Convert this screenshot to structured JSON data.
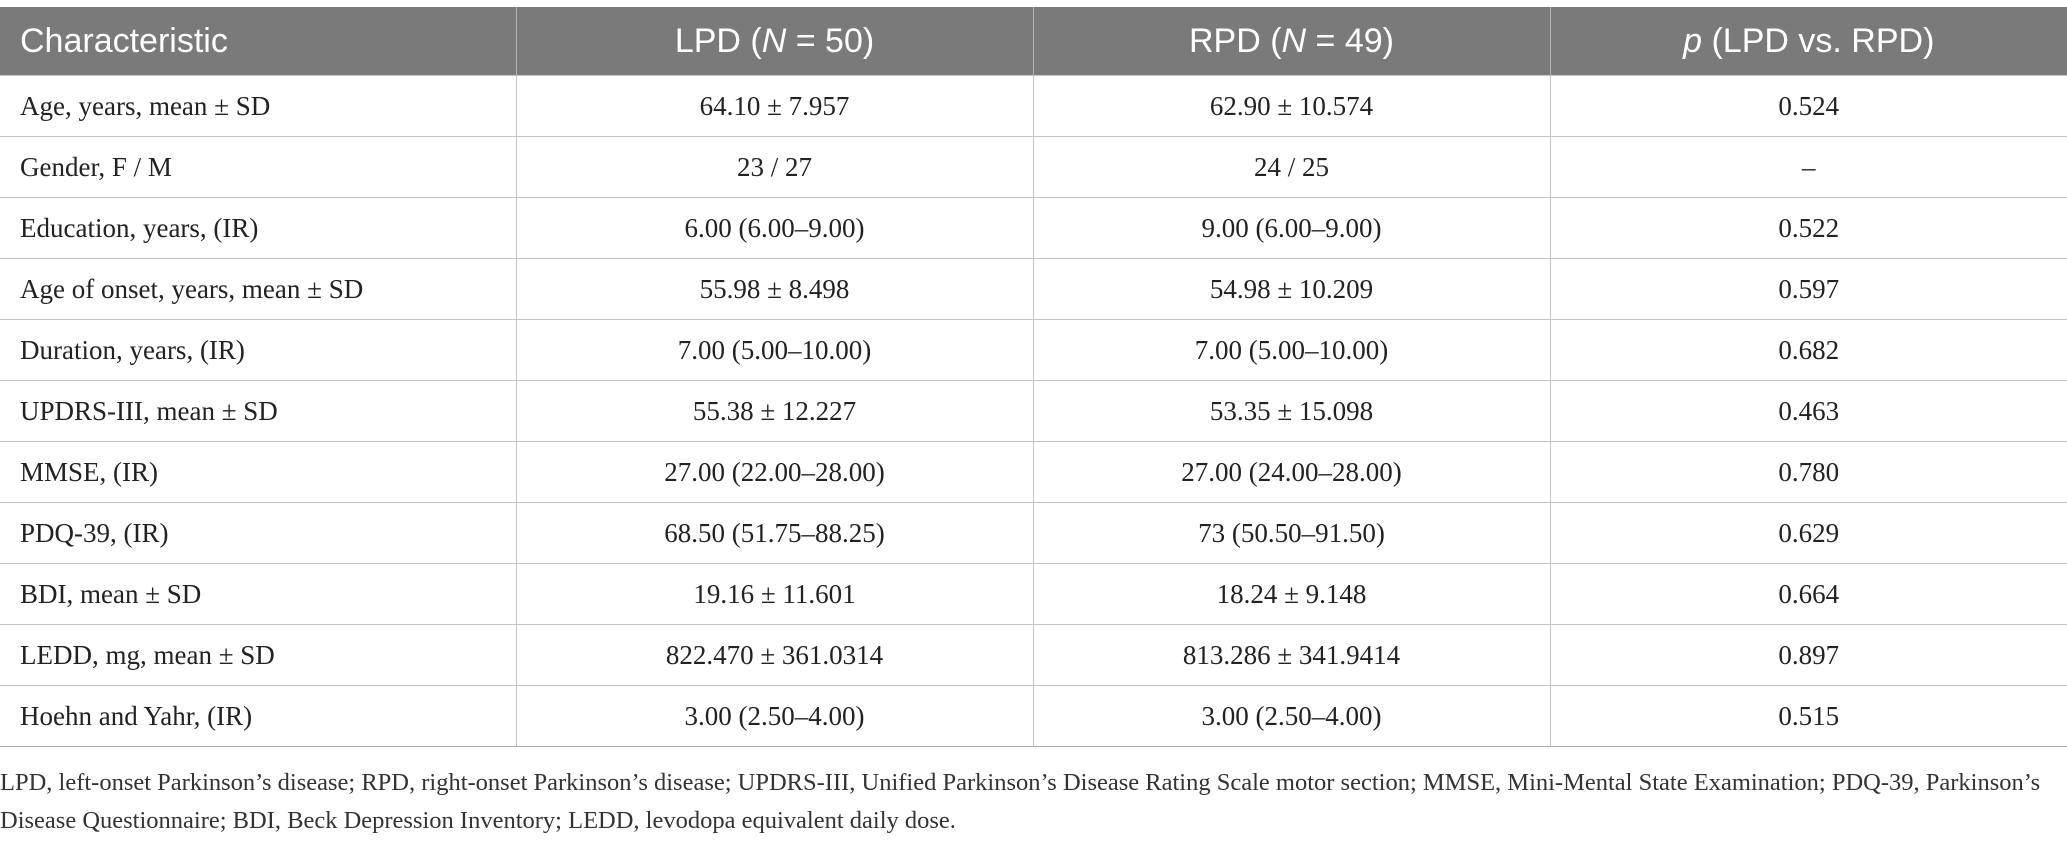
{
  "table": {
    "headers": [
      {
        "pre": "Characteristic",
        "ital": "",
        "post": ""
      },
      {
        "pre": "LPD (",
        "ital": "N",
        "post": " = 50)"
      },
      {
        "pre": "RPD (",
        "ital": "N",
        "post": " = 49)"
      },
      {
        "pre": "",
        "ital": "p",
        "post": " (LPD vs. RPD)"
      }
    ],
    "rows": [
      [
        "Age, years, mean ± SD",
        "64.10 ± 7.957",
        "62.90 ± 10.574",
        "0.524"
      ],
      [
        "Gender, F / M",
        "23 / 27",
        "24 / 25",
        "–"
      ],
      [
        "Education, years, (IR)",
        "6.00 (6.00–9.00)",
        "9.00 (6.00–9.00)",
        "0.522"
      ],
      [
        "Age of onset, years, mean ± SD",
        "55.98 ± 8.498",
        "54.98 ± 10.209",
        "0.597"
      ],
      [
        "Duration, years, (IR)",
        "7.00 (5.00–10.00)",
        "7.00 (5.00–10.00)",
        "0.682"
      ],
      [
        "UPDRS-III, mean ± SD",
        "55.38 ± 12.227",
        "53.35 ± 15.098",
        "0.463"
      ],
      [
        "MMSE, (IR)",
        "27.00 (22.00–28.00)",
        "27.00 (24.00–28.00)",
        "0.780"
      ],
      [
        "PDQ-39, (IR)",
        "68.50 (51.75–88.25)",
        "73 (50.50–91.50)",
        "0.629"
      ],
      [
        "BDI, mean ± SD",
        "19.16 ± 11.601",
        "18.24 ± 9.148",
        "0.664"
      ],
      [
        "LEDD, mg, mean ± SD",
        "822.470 ± 361.0314",
        "813.286 ± 341.9414",
        "0.897"
      ],
      [
        "Hoehn and Yahr, (IR)",
        "3.00 (2.50–4.00)",
        "3.00 (2.50–4.00)",
        "0.515"
      ]
    ]
  },
  "footnote": "LPD, left-onset Parkinson’s disease; RPD, right-onset Parkinson’s disease; UPDRS-III, Unified Parkinson’s Disease Rating Scale motor section; MMSE, Mini-Mental State Examination; PDQ-39, Parkinson’s Disease Questionnaire; BDI, Beck Depression Inventory; LEDD, levodopa equivalent daily dose.",
  "colors": {
    "header_background": "#7a7a7a",
    "header_text": "#ffffff",
    "grid_lines": "#c4c4c4"
  }
}
